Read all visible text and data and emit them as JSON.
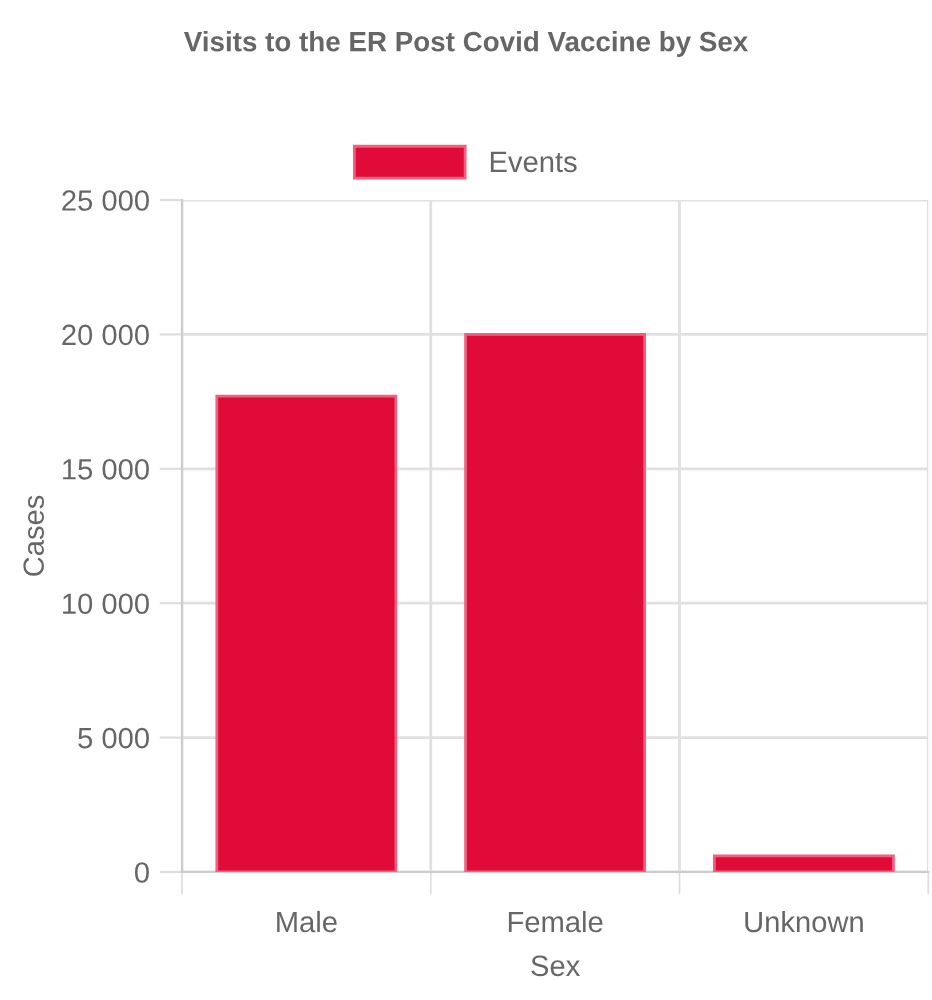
{
  "chart_data": {
    "type": "bar",
    "title": "Visits to the ER Post Covid Vaccine by Sex",
    "xlabel": "Sex",
    "ylabel": "Cases",
    "categories": [
      "Male",
      "Female",
      "Unknown"
    ],
    "series": [
      {
        "name": "Events",
        "color": "#e00c37",
        "values": [
          17700,
          20000,
          600
        ]
      }
    ],
    "ylim": [
      0,
      25000
    ],
    "yticks": [
      {
        "value": 0,
        "label": "0"
      },
      {
        "value": 5000,
        "label": "5 000"
      },
      {
        "value": 10000,
        "label": "10 000"
      },
      {
        "value": 15000,
        "label": "15 000"
      },
      {
        "value": 20000,
        "label": "20 000"
      },
      {
        "value": 25000,
        "label": "25 000"
      }
    ],
    "grid": true,
    "legend": "top"
  }
}
